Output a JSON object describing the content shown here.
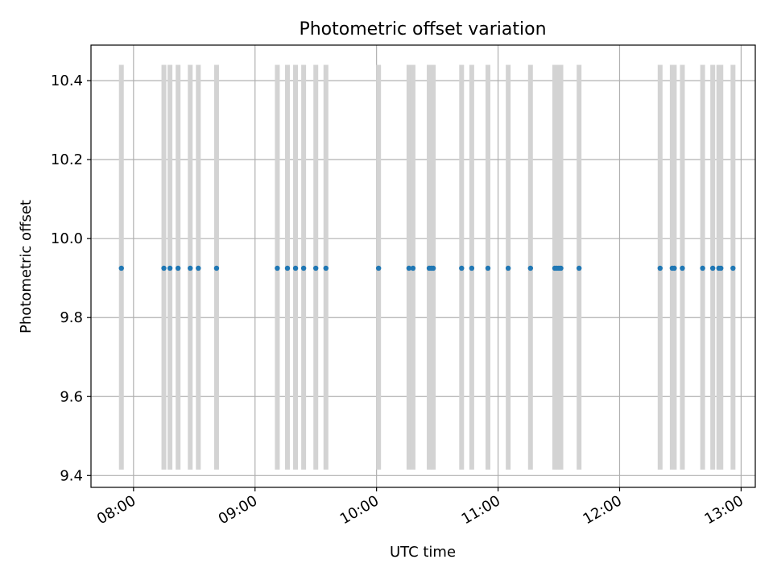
{
  "chart_data": {
    "type": "scatter",
    "title": "Photometric offset variation",
    "xlabel": "UTC time",
    "ylabel": "Photometric offset",
    "ylim": [
      9.37,
      10.49
    ],
    "xlim": [
      "07:39",
      "13:07"
    ],
    "grid": true,
    "x_tick_labels": [
      "08:00",
      "09:00",
      "10:00",
      "11:00",
      "12:00",
      "13:00"
    ],
    "y_tick_labels": [
      "9.4",
      "9.6",
      "9.8",
      "10.0",
      "10.2",
      "10.4"
    ],
    "point_color": "#1f77b4",
    "band_color": "#d3d3d3",
    "band_range": [
      9.415,
      10.44
    ],
    "series": [
      {
        "x": [
          "07:54",
          "08:15",
          "08:18",
          "08:22",
          "08:28",
          "08:32",
          "08:41",
          "09:11",
          "09:16",
          "09:20",
          "09:24",
          "09:30",
          "09:35",
          "10:01",
          "10:16",
          "10:18",
          "10:26",
          "10:27",
          "10:28",
          "10:42",
          "10:47",
          "10:55",
          "11:05",
          "11:16",
          "11:28",
          "11:29",
          "11:30",
          "11:31",
          "11:40",
          "12:20",
          "12:26",
          "12:27",
          "12:31",
          "12:41",
          "12:46",
          "12:49",
          "12:50",
          "12:56"
        ],
        "y": [
          9.925,
          9.925,
          9.925,
          9.925,
          9.925,
          9.925,
          9.925,
          9.925,
          9.925,
          9.925,
          9.925,
          9.925,
          9.925,
          9.925,
          9.925,
          9.925,
          9.925,
          9.925,
          9.925,
          9.925,
          9.925,
          9.925,
          9.925,
          9.925,
          9.925,
          9.925,
          9.925,
          9.925,
          9.925,
          9.925,
          9.925,
          9.925,
          9.925,
          9.925,
          9.925,
          9.925,
          9.925,
          9.925
        ]
      }
    ]
  }
}
